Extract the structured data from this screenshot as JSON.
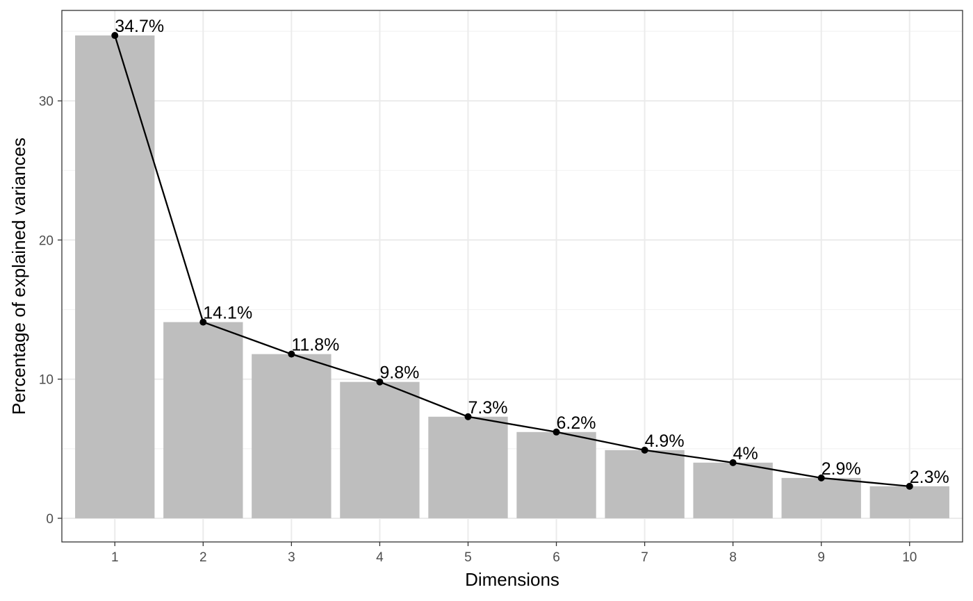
{
  "chart_data": {
    "type": "bar",
    "categories": [
      "1",
      "2",
      "3",
      "4",
      "5",
      "6",
      "7",
      "8",
      "9",
      "10"
    ],
    "values": [
      34.7,
      14.1,
      11.8,
      9.8,
      7.3,
      6.2,
      4.9,
      4.0,
      2.9,
      2.3
    ],
    "data_labels": [
      "34.7%",
      "14.1%",
      "11.8%",
      "9.8%",
      "7.3%",
      "6.2%",
      "4.9%",
      "4%",
      "2.9%",
      "2.3%"
    ],
    "overlay": "line-with-points",
    "xlabel": "Dimensions",
    "ylabel": "Percentage of explained variances",
    "ylim": [
      -1.7,
      36.5
    ],
    "yticks": [
      0,
      10,
      20,
      30
    ],
    "ytick_labels": [
      "0",
      "10",
      "20",
      "30"
    ],
    "grid": true,
    "colors": {
      "bar": "#bebebe",
      "line": "#000000",
      "grid_major": "#ebebeb",
      "grid_minor": "#f2f2f2",
      "panel_border": "#333333",
      "tick_text": "#4d4d4d"
    }
  }
}
